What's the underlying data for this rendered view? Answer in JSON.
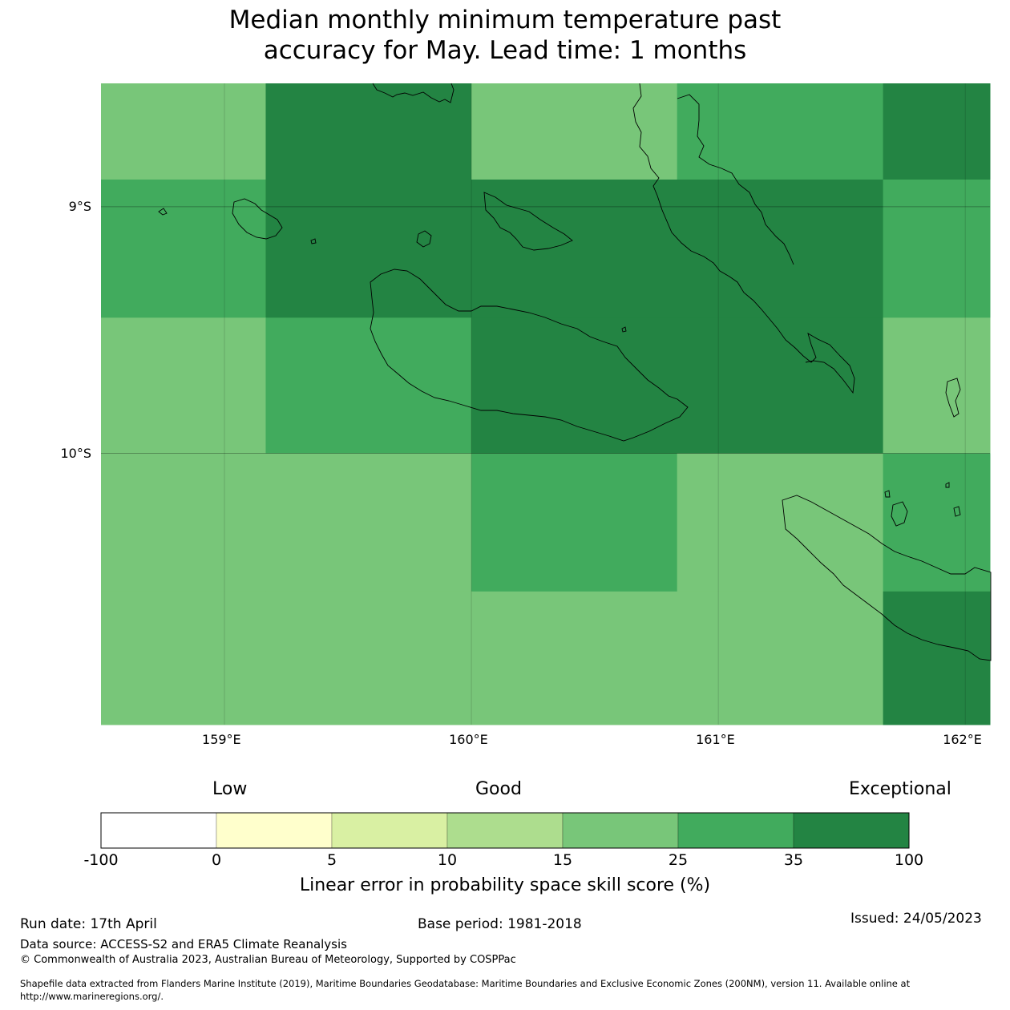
{
  "title": {
    "line1": "Median monthly minimum temperature past",
    "line2": "accuracy for May. Lead time: 1 months"
  },
  "map": {
    "lon_range": [
      158.5,
      162.1
    ],
    "lat_range": [
      -8.5,
      -11.1
    ],
    "lon_ticks": [
      {
        "value": 159,
        "label": "159°E"
      },
      {
        "value": 160,
        "label": "160°E"
      },
      {
        "value": 161,
        "label": "161°E"
      },
      {
        "value": 162,
        "label": "162°E"
      }
    ],
    "lat_ticks": [
      {
        "value": -9,
        "label": "9°S"
      },
      {
        "value": -10,
        "label": "10°S"
      }
    ],
    "cell_lon_edges": [
      158.5,
      159.167,
      160.0,
      160.833,
      161.667,
      162.1
    ],
    "cell_lat_edges": [
      -8.5,
      -8.89,
      -9.45,
      -10.0,
      -10.56,
      -11.1
    ],
    "cell_skill_band": [
      [
        4,
        6,
        4,
        5,
        6
      ],
      [
        5,
        6,
        6,
        6,
        5
      ],
      [
        4,
        5,
        6,
        6,
        4
      ],
      [
        4,
        4,
        5,
        4,
        5
      ],
      [
        4,
        4,
        4,
        4,
        6
      ]
    ]
  },
  "colorbar": {
    "categories": [
      {
        "label": "Low",
        "value": 0
      },
      {
        "label": "Good",
        "value": 12.5
      },
      {
        "label": "Exceptional",
        "value": 100
      }
    ],
    "bands": [
      {
        "from": -100,
        "to": 0,
        "color": "#ffffff"
      },
      {
        "from": 0,
        "to": 5,
        "color": "#ffffcc"
      },
      {
        "from": 5,
        "to": 10,
        "color": "#d9f0a3"
      },
      {
        "from": 10,
        "to": 15,
        "color": "#addd8e"
      },
      {
        "from": 15,
        "to": 25,
        "color": "#78c679"
      },
      {
        "from": 25,
        "to": 35,
        "color": "#41ab5d"
      },
      {
        "from": 35,
        "to": 100,
        "color": "#238443"
      }
    ],
    "ticks": [
      "-100",
      "0",
      "5",
      "10",
      "15",
      "25",
      "35",
      "100"
    ],
    "label": "Linear error in probability space skill score (%)"
  },
  "footer": {
    "run_date": "Run date: 17th April",
    "base_period": "Base period: 1981-2018",
    "issued": "Issued: 24/05/2023",
    "data_source": "Data source: ACCESS-S2 and ERA5 Climate Reanalysis",
    "copyright": "© Commonwealth of Australia 2023, Australian Bureau of Meteorology, Supported by COSPPac",
    "shapefile_line1": "Shapefile data extracted from Flanders Marine Institute (2019), Maritime Boundaries Geodatabase: Maritime Boundaries and Exclusive Economic Zones (200NM), version 11. Available online at",
    "shapefile_line2": "http://www.marineregions.org/."
  }
}
